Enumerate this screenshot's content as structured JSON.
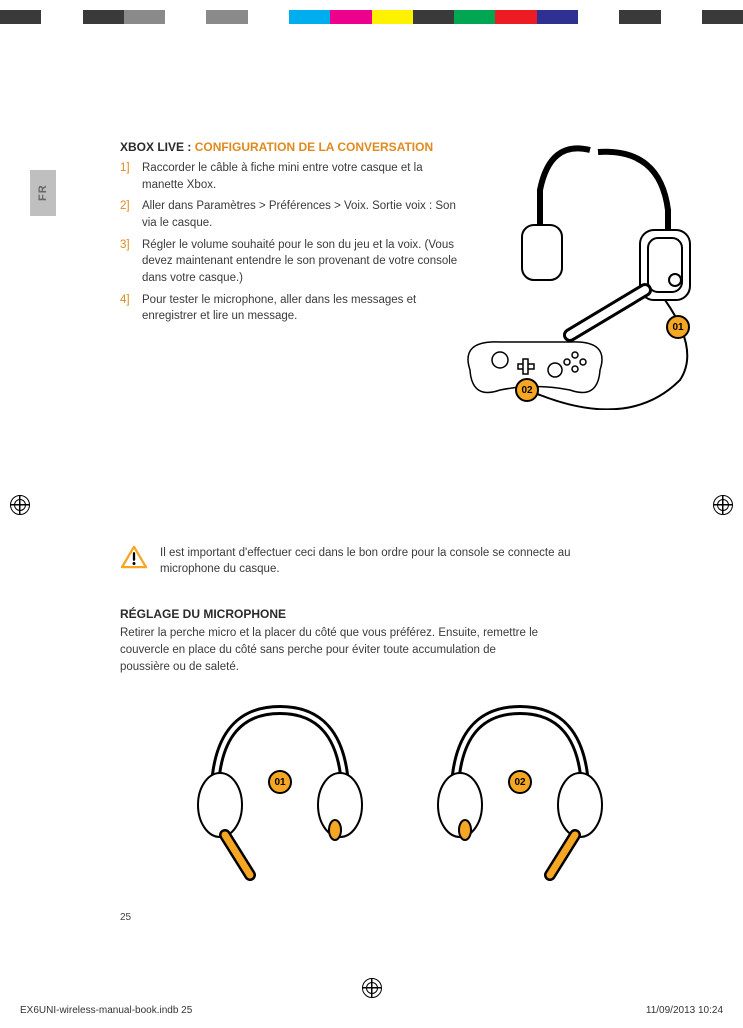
{
  "colorBar": [
    "#3a3a3a",
    "#ffffff",
    "#3a3a3a",
    "#8a8a8a",
    "#ffffff",
    "#8a8a8a",
    "#ffffff",
    "#00aeef",
    "#ec008c",
    "#fff200",
    "#3a3a3a",
    "#00a651",
    "#ed1c24",
    "#2e3192",
    "#ffffff",
    "#3a3a3a",
    "#ffffff",
    "#3a3a3a"
  ],
  "langTab": "FR",
  "section1": {
    "titleBlack": "XBOX LIVE : ",
    "titleOrange": "CONFIGURATION DE LA CONVERSATION",
    "steps": [
      {
        "n": "1]",
        "t": "Raccorder le câble à fiche mini entre votre casque et la manette Xbox."
      },
      {
        "n": "2]",
        "t": "Aller dans Paramètres > Préférences > Voix. Sortie voix : Son via le casque."
      },
      {
        "n": "3]",
        "t": "Régler le volume souhaité pour le son du jeu et la voix. (Vous devez maintenant entendre le son provenant de votre console dans votre casque.)"
      },
      {
        "n": "4]",
        "t": "Pour tester le microphone, aller dans les messages et enregistrer et lire un message."
      }
    ]
  },
  "illusTop": {
    "badge1": "01",
    "badge2": "02",
    "accent": "#f5a623",
    "stroke": "#000000"
  },
  "warning": {
    "text": "Il est important d'effectuer ceci dans le bon ordre pour la console se connecte au microphone du casque.",
    "accent": "#f5a623"
  },
  "section2": {
    "title": "RÉGLAGE DU MICROPHONE",
    "body": "Retirer la perche micro et la placer du côté que vous préférez. Ensuite, remettre le couvercle en place du côté sans perche pour éviter toute accumulation de poussière ou de saleté.",
    "badge1": "01",
    "badge2": "02",
    "accent": "#f5a623"
  },
  "pageNumber": "25",
  "footer": {
    "left": "EX6UNI-wireless-manual-book.indb   25",
    "right": "11/09/2013   10:24"
  }
}
